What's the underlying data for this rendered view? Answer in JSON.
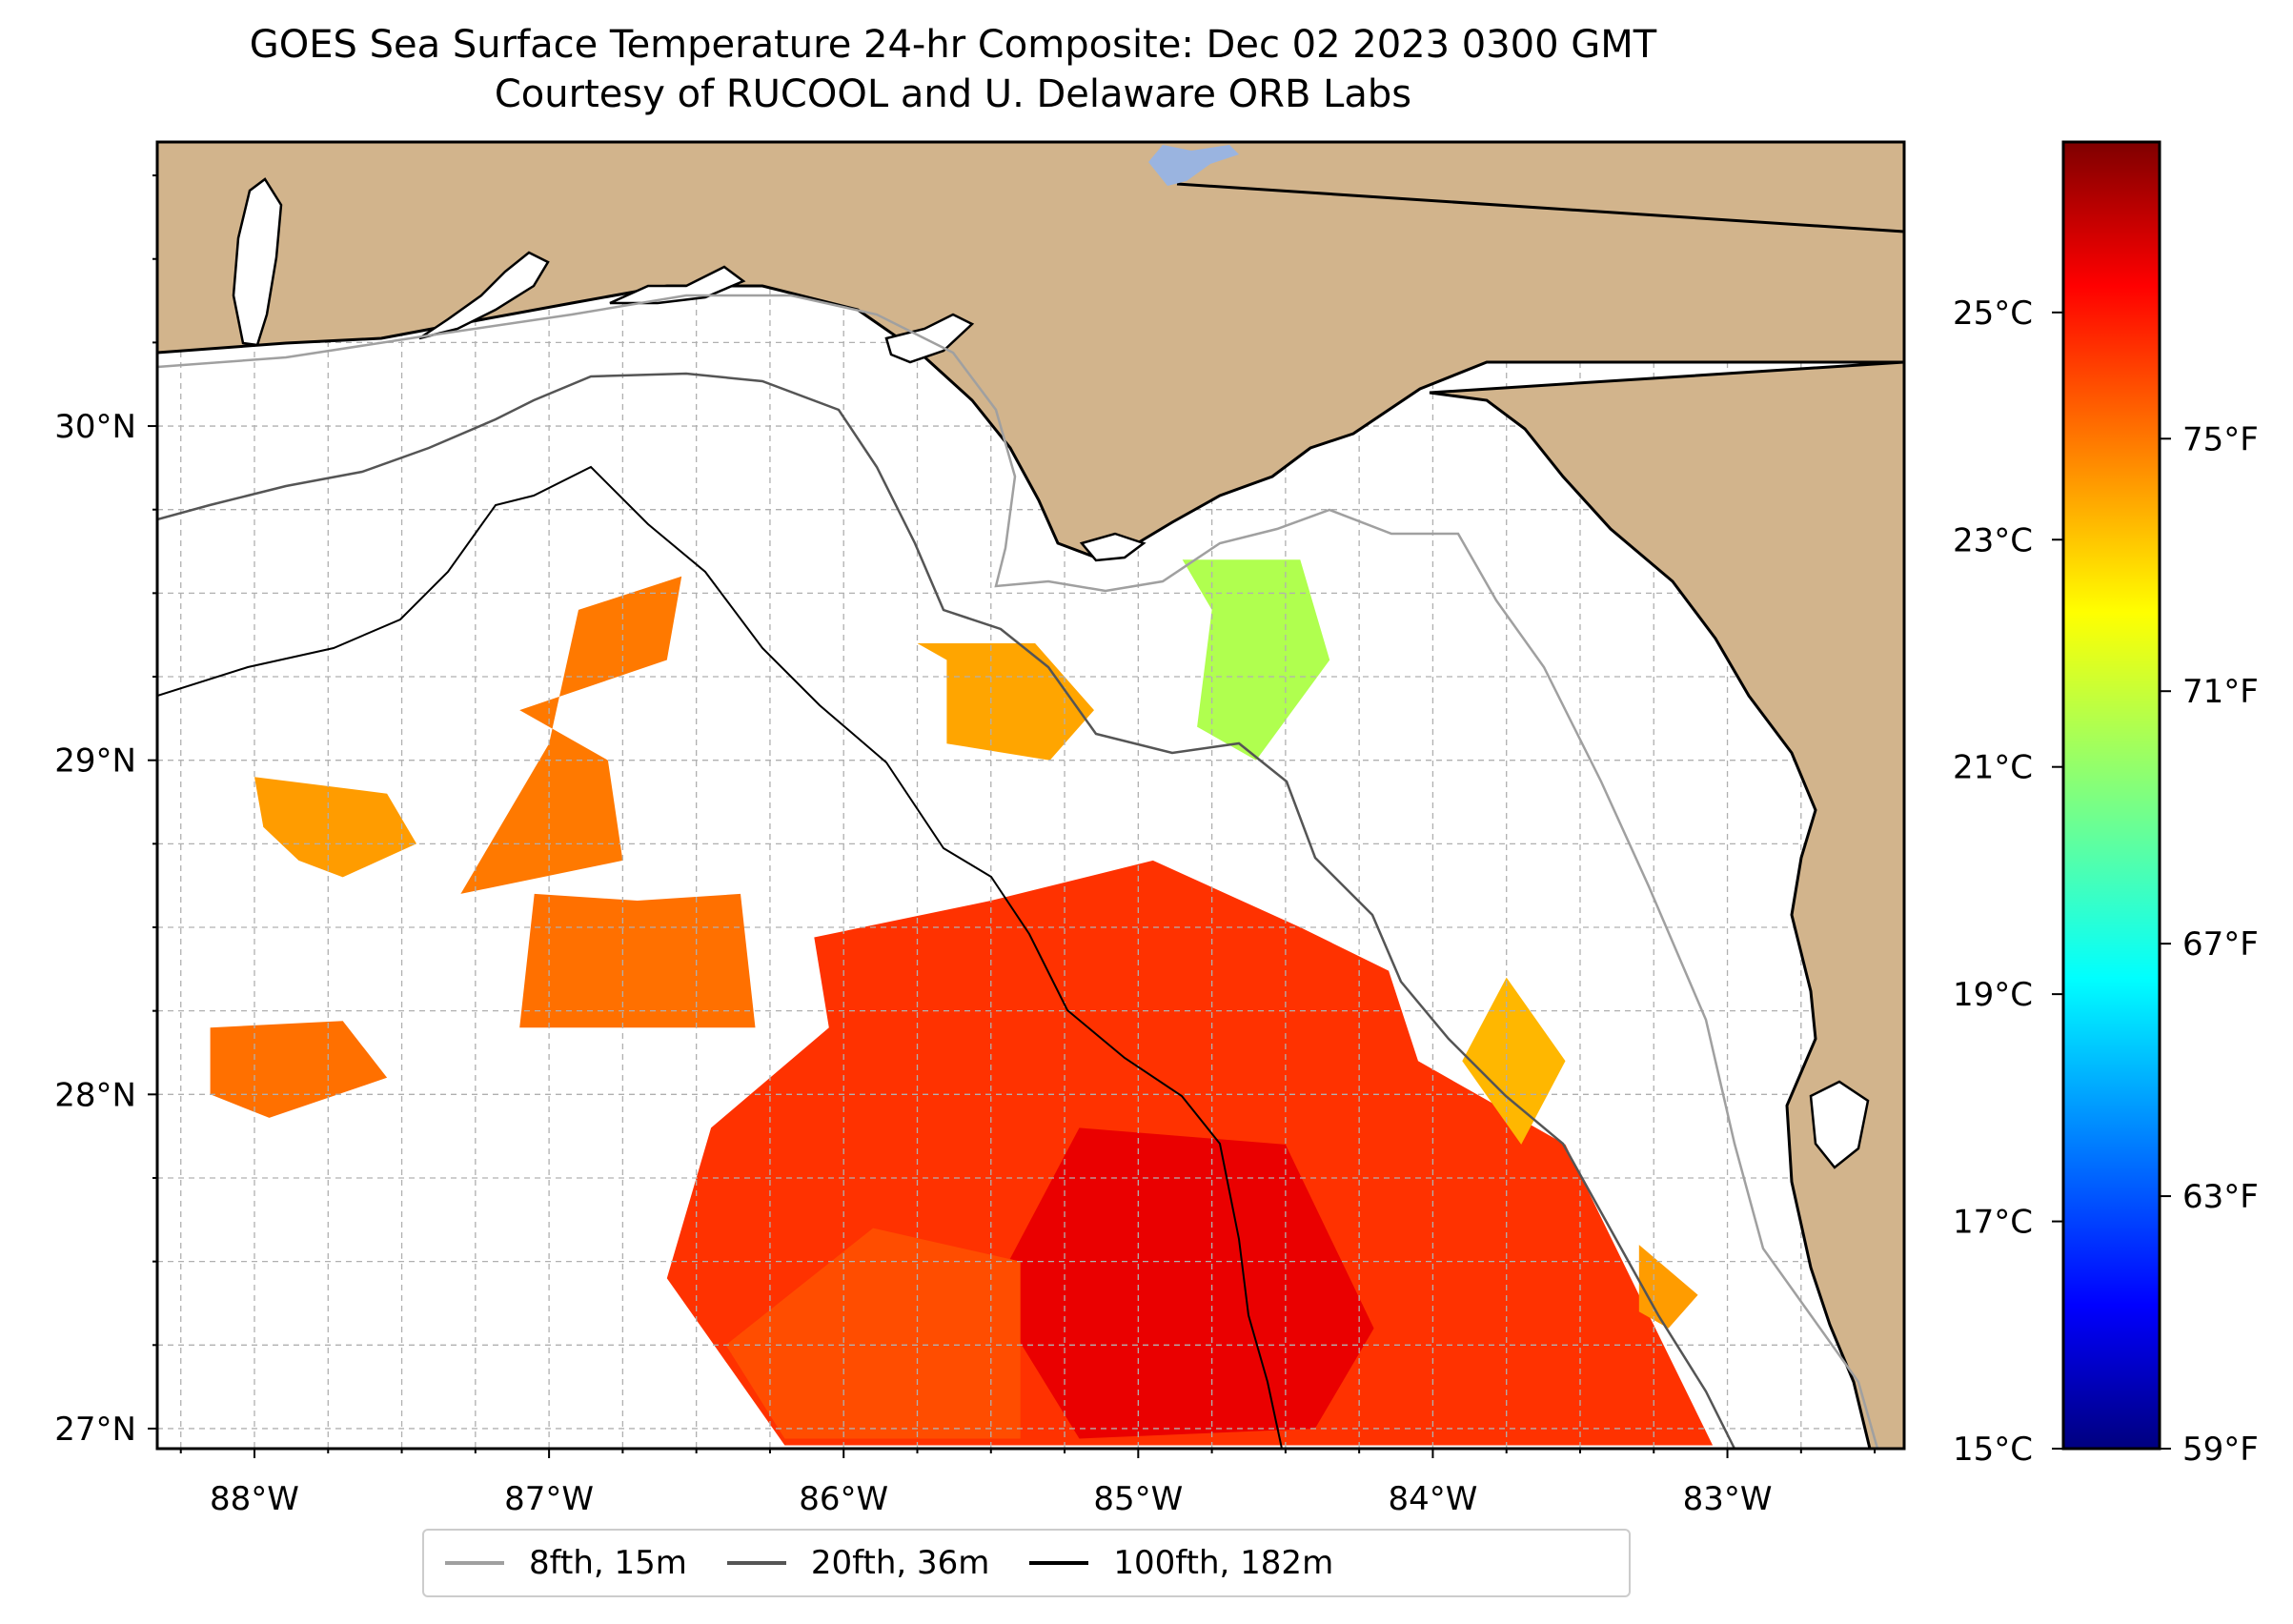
{
  "title": "GOES Sea Surface Temperature 24-hr Composite: Dec 02 2023 0300 GMT",
  "subtitle": "Courtesy of RUCOOL and U. Delaware ORB Labs",
  "chart_data": {
    "type": "heatmap",
    "title": "GOES Sea Surface Temperature 24-hr Composite: Dec 02 2023 0300 GMT",
    "subtitle": "Courtesy of RUCOOL and U. Delaware ORB Labs",
    "xlim": [
      -88.33,
      -82.4
    ],
    "ylim": [
      26.94,
      30.85
    ],
    "x_ticks": [
      {
        "value": -88,
        "label": "88°W"
      },
      {
        "value": -87,
        "label": "87°W"
      },
      {
        "value": -86,
        "label": "86°W"
      },
      {
        "value": -85,
        "label": "85°W"
      },
      {
        "value": -84,
        "label": "84°W"
      },
      {
        "value": -83,
        "label": "83°W"
      }
    ],
    "y_ticks": [
      {
        "value": 27,
        "label": "27°N"
      },
      {
        "value": 28,
        "label": "28°N"
      },
      {
        "value": 29,
        "label": "29°N"
      },
      {
        "value": 30,
        "label": "30°N"
      }
    ],
    "grid": true,
    "colorbar": {
      "colormap": "jet",
      "vmin_c": 15,
      "vmax_c": 26.5,
      "celsius_ticks": [
        {
          "value": 15,
          "label": "15°C"
        },
        {
          "value": 17,
          "label": "17°C"
        },
        {
          "value": 19,
          "label": "19°C"
        },
        {
          "value": 21,
          "label": "21°C"
        },
        {
          "value": 23,
          "label": "23°C"
        },
        {
          "value": 25,
          "label": "25°C"
        }
      ],
      "fahrenheit_ticks": [
        {
          "value": 59,
          "label": "59°F"
        },
        {
          "value": 63,
          "label": "63°F"
        },
        {
          "value": 67,
          "label": "67°F"
        },
        {
          "value": 71,
          "label": "71°F"
        },
        {
          "value": 75,
          "label": "75°F"
        }
      ]
    },
    "sst_regions": [
      {
        "temp_c": 24.5,
        "points": [
          [
            -86.1,
            28.47
          ],
          [
            -85.5,
            28.58
          ],
          [
            -84.95,
            28.7
          ],
          [
            -84.45,
            28.5
          ],
          [
            -84.15,
            28.37
          ],
          [
            -84.05,
            28.1
          ],
          [
            -83.55,
            27.85
          ],
          [
            -83.3,
            27.4
          ],
          [
            -83.05,
            26.95
          ],
          [
            -86.2,
            26.95
          ],
          [
            -86.6,
            27.45
          ],
          [
            -86.45,
            27.9
          ],
          [
            -86.05,
            28.2
          ]
        ]
      },
      {
        "temp_c": 25.3,
        "points": [
          [
            -85.2,
            27.9
          ],
          [
            -84.5,
            27.85
          ],
          [
            -84.2,
            27.3
          ],
          [
            -84.4,
            27.0
          ],
          [
            -85.2,
            26.97
          ],
          [
            -85.5,
            27.4
          ]
        ]
      },
      {
        "temp_c": 24.2,
        "points": [
          [
            -86.4,
            27.25
          ],
          [
            -85.9,
            27.6
          ],
          [
            -85.4,
            27.5
          ],
          [
            -85.4,
            26.97
          ],
          [
            -86.2,
            26.97
          ]
        ]
      },
      {
        "temp_c": 23.8,
        "points": [
          [
            -87.05,
            28.6
          ],
          [
            -86.7,
            28.58
          ],
          [
            -86.35,
            28.6
          ],
          [
            -86.3,
            28.2
          ],
          [
            -87.1,
            28.2
          ]
        ]
      },
      {
        "temp_c": 23.7,
        "points": [
          [
            -87.1,
            29.15
          ],
          [
            -86.6,
            29.3
          ],
          [
            -86.55,
            29.55
          ],
          [
            -86.9,
            29.45
          ],
          [
            -87.0,
            29.05
          ],
          [
            -87.3,
            28.6
          ],
          [
            -86.75,
            28.7
          ],
          [
            -86.8,
            29.0
          ]
        ]
      },
      {
        "temp_c": 23.8,
        "points": [
          [
            -88.15,
            28.2
          ],
          [
            -87.7,
            28.22
          ],
          [
            -87.55,
            28.05
          ],
          [
            -87.95,
            27.93
          ],
          [
            -88.15,
            28.0
          ]
        ]
      },
      {
        "temp_c": 23.3,
        "points": [
          [
            -88.0,
            28.95
          ],
          [
            -87.55,
            28.9
          ],
          [
            -87.45,
            28.75
          ],
          [
            -87.7,
            28.65
          ],
          [
            -87.85,
            28.7
          ],
          [
            -87.97,
            28.8
          ]
        ]
      },
      {
        "temp_c": 23.2,
        "points": [
          [
            -85.75,
            29.35
          ],
          [
            -85.35,
            29.35
          ],
          [
            -85.15,
            29.15
          ],
          [
            -85.3,
            29.0
          ],
          [
            -85.65,
            29.05
          ],
          [
            -85.65,
            29.3
          ]
        ]
      },
      {
        "temp_c": 21.3,
        "points": [
          [
            -84.85,
            29.6
          ],
          [
            -84.45,
            29.6
          ],
          [
            -84.35,
            29.3
          ],
          [
            -84.6,
            29.0
          ],
          [
            -84.8,
            29.1
          ],
          [
            -84.75,
            29.45
          ]
        ]
      },
      {
        "temp_c": 23.0,
        "points": [
          [
            -83.75,
            28.35
          ],
          [
            -83.55,
            28.1
          ],
          [
            -83.7,
            27.85
          ],
          [
            -83.9,
            28.1
          ]
        ]
      },
      {
        "temp_c": 23.3,
        "points": [
          [
            -83.3,
            27.55
          ],
          [
            -83.1,
            27.4
          ],
          [
            -83.2,
            27.3
          ],
          [
            -83.3,
            27.35
          ]
        ]
      }
    ],
    "legend": [
      {
        "label": "8fth, 15m",
        "color": "#a0a0a0"
      },
      {
        "label": "20fth, 36m",
        "color": "#555555"
      },
      {
        "label": "100fth, 182m",
        "color": "#000000"
      }
    ],
    "legend_position": "bottom-center"
  }
}
